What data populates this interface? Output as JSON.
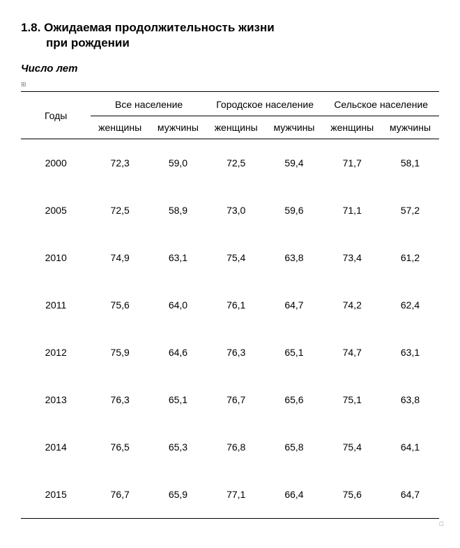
{
  "title": {
    "number": "1.8.",
    "line1": "Ожидаемая продолжительность жизни",
    "line2": "при рождении"
  },
  "subtitle": "Число лет",
  "marker_left": "⊞",
  "marker_right": "□",
  "table": {
    "header": {
      "years": "Годы",
      "groups": [
        "Все население",
        "Городское население",
        "Сельское население"
      ],
      "sub": [
        "женщины",
        "мужчины"
      ]
    },
    "rows": [
      {
        "year": "2000",
        "v": [
          "72,3",
          "59,0",
          "72,5",
          "59,4",
          "71,7",
          "58,1"
        ]
      },
      {
        "year": "2005",
        "v": [
          "72,5",
          "58,9",
          "73,0",
          "59,6",
          "71,1",
          "57,2"
        ]
      },
      {
        "year": "2010",
        "v": [
          "74,9",
          "63,1",
          "75,4",
          "63,8",
          "73,4",
          "61,2"
        ]
      },
      {
        "year": "2011",
        "v": [
          "75,6",
          "64,0",
          "76,1",
          "64,7",
          "74,2",
          "62,4"
        ]
      },
      {
        "year": "2012",
        "v": [
          "75,9",
          "64,6",
          "76,3",
          "65,1",
          "74,7",
          "63,1"
        ]
      },
      {
        "year": "2013",
        "v": [
          "76,3",
          "65,1",
          "76,7",
          "65,6",
          "75,1",
          "63,8"
        ]
      },
      {
        "year": "2014",
        "v": [
          "76,5",
          "65,3",
          "76,8",
          "65,8",
          "75,4",
          "64,1"
        ]
      },
      {
        "year": "2015",
        "v": [
          "76,7",
          "65,9",
          "77,1",
          "66,4",
          "75,6",
          "64,7"
        ]
      }
    ]
  },
  "style": {
    "background": "#ffffff",
    "text_color": "#000000",
    "rule_color": "#000000",
    "title_fontsize_pt": 13,
    "body_fontsize_pt": 11
  }
}
